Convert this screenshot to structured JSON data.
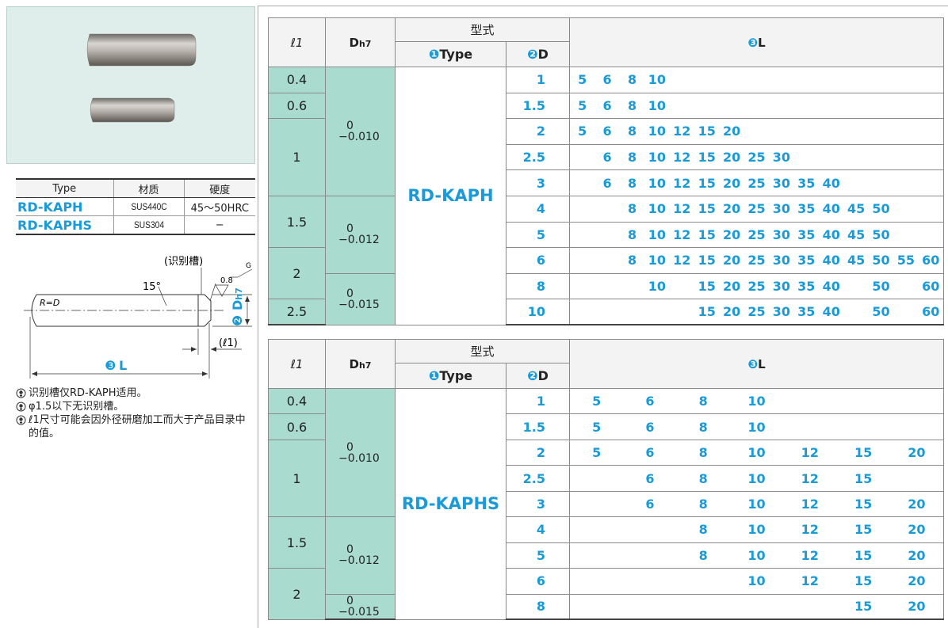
{
  "left": {
    "material_table": {
      "header": [
        "Type",
        "材质",
        "硬度"
      ],
      "rows": [
        [
          "RD-KAPH",
          "SUS440C",
          "45～50HRC"
        ],
        [
          "RD-KAPHS",
          "SUS304",
          "−"
        ]
      ]
    },
    "diagram": {
      "groove": "(识别槽)",
      "g": "G",
      "angle": "15°",
      "roughness": "0.8",
      "radius": "R=D",
      "d_num": "❷",
      "d_main": "D",
      "d_sub": "h7",
      "l1": "(ℓ1)",
      "l_num": "❸",
      "l": "L"
    },
    "notes": [
      "识别槽仅RD-KAPH适用。",
      "φ1.5以下无识别槽。",
      "ℓ1尺寸可能会因外径研磨加工而大于产品目录中的值。"
    ]
  },
  "tables": [
    {
      "header": {
        "l1": "ℓ1",
        "d_main": "D",
        "d_sub": "h7",
        "model": "型式",
        "type_num": "❶",
        "type": "Type",
        "d_num": "❷",
        "d": "D",
        "l_num": "❸",
        "l": "L"
      },
      "type": "RD-KAPH",
      "rows": [
        {
          "l1": 0.4,
          "tol": {
            "upper": "0",
            "lower": "−0.010"
          },
          "d": 1,
          "l": [
            5,
            6,
            8,
            10,
            null,
            null,
            null,
            null,
            null,
            null,
            null,
            null,
            null,
            null,
            null
          ]
        },
        {
          "l1": 0.6,
          "tol": null,
          "d": 1.5,
          "l": [
            5,
            6,
            8,
            10,
            null,
            null,
            null,
            null,
            null,
            null,
            null,
            null,
            null,
            null,
            null
          ]
        },
        {
          "l1": 1,
          "tol": null,
          "d": 2,
          "l": [
            5,
            6,
            8,
            10,
            12,
            15,
            20,
            null,
            null,
            null,
            null,
            null,
            null,
            null,
            null
          ]
        },
        {
          "l1": null,
          "tol": null,
          "d": 2.5,
          "l": [
            null,
            6,
            8,
            10,
            12,
            15,
            20,
            25,
            30,
            null,
            null,
            null,
            null,
            null,
            null
          ]
        },
        {
          "l1": null,
          "tol": null,
          "d": 3,
          "l": [
            null,
            6,
            8,
            10,
            12,
            15,
            20,
            25,
            30,
            35,
            40,
            null,
            null,
            null,
            null
          ]
        },
        {
          "l1": 1.5,
          "tol": {
            "upper": "0",
            "lower": "−0.012"
          },
          "d": 4,
          "l": [
            null,
            null,
            8,
            10,
            12,
            15,
            20,
            25,
            30,
            35,
            40,
            45,
            50,
            null,
            null
          ]
        },
        {
          "l1": null,
          "tol": null,
          "d": 5,
          "l": [
            null,
            null,
            8,
            10,
            12,
            15,
            20,
            25,
            30,
            35,
            40,
            45,
            50,
            null,
            null
          ]
        },
        {
          "l1": 2,
          "tol": null,
          "d": 6,
          "l": [
            null,
            null,
            8,
            10,
            12,
            15,
            20,
            25,
            30,
            35,
            40,
            45,
            50,
            55,
            60
          ]
        },
        {
          "l1": null,
          "tol": {
            "upper": "0",
            "lower": "−0.015"
          },
          "d": 8,
          "l": [
            null,
            null,
            null,
            10,
            null,
            15,
            20,
            25,
            30,
            35,
            40,
            null,
            50,
            null,
            60
          ]
        },
        {
          "l1": 2.5,
          "tol": null,
          "d": 10,
          "l": [
            null,
            null,
            null,
            null,
            null,
            15,
            20,
            25,
            30,
            35,
            40,
            null,
            50,
            null,
            60
          ]
        }
      ]
    },
    {
      "header": {
        "l1": "ℓ1",
        "d_main": "D",
        "d_sub": "h7",
        "model": "型式",
        "type_num": "❶",
        "type": "Type",
        "d_num": "❷",
        "d": "D",
        "l_num": "❸",
        "l": "L"
      },
      "type": "RD-KAPHS",
      "rows": [
        {
          "l1": 0.4,
          "tol": {
            "upper": "0",
            "lower": "−0.010"
          },
          "d": 1,
          "l": [
            5,
            6,
            8,
            10,
            null,
            null,
            null
          ]
        },
        {
          "l1": 0.6,
          "tol": null,
          "d": 1.5,
          "l": [
            5,
            6,
            8,
            10,
            null,
            null,
            null
          ]
        },
        {
          "l1": 1,
          "tol": null,
          "d": 2,
          "l": [
            5,
            6,
            8,
            10,
            12,
            15,
            20
          ]
        },
        {
          "l1": null,
          "tol": null,
          "d": 2.5,
          "l": [
            null,
            6,
            8,
            10,
            12,
            15,
            null
          ]
        },
        {
          "l1": null,
          "tol": null,
          "d": 3,
          "l": [
            null,
            6,
            8,
            10,
            12,
            15,
            20
          ]
        },
        {
          "l1": 1.5,
          "tol": {
            "upper": "0",
            "lower": "−0.012"
          },
          "d": 4,
          "l": [
            null,
            null,
            8,
            10,
            12,
            15,
            20
          ]
        },
        {
          "l1": null,
          "tol": null,
          "d": 5,
          "l": [
            null,
            null,
            8,
            10,
            12,
            15,
            20
          ]
        },
        {
          "l1": 2,
          "tol": null,
          "d": 6,
          "l": [
            null,
            null,
            null,
            10,
            12,
            15,
            20
          ]
        },
        {
          "l1": null,
          "tol": {
            "upper": "0",
            "lower": "−0.015"
          },
          "d": 8,
          "l": [
            null,
            null,
            null,
            null,
            null,
            15,
            20
          ]
        }
      ]
    }
  ]
}
